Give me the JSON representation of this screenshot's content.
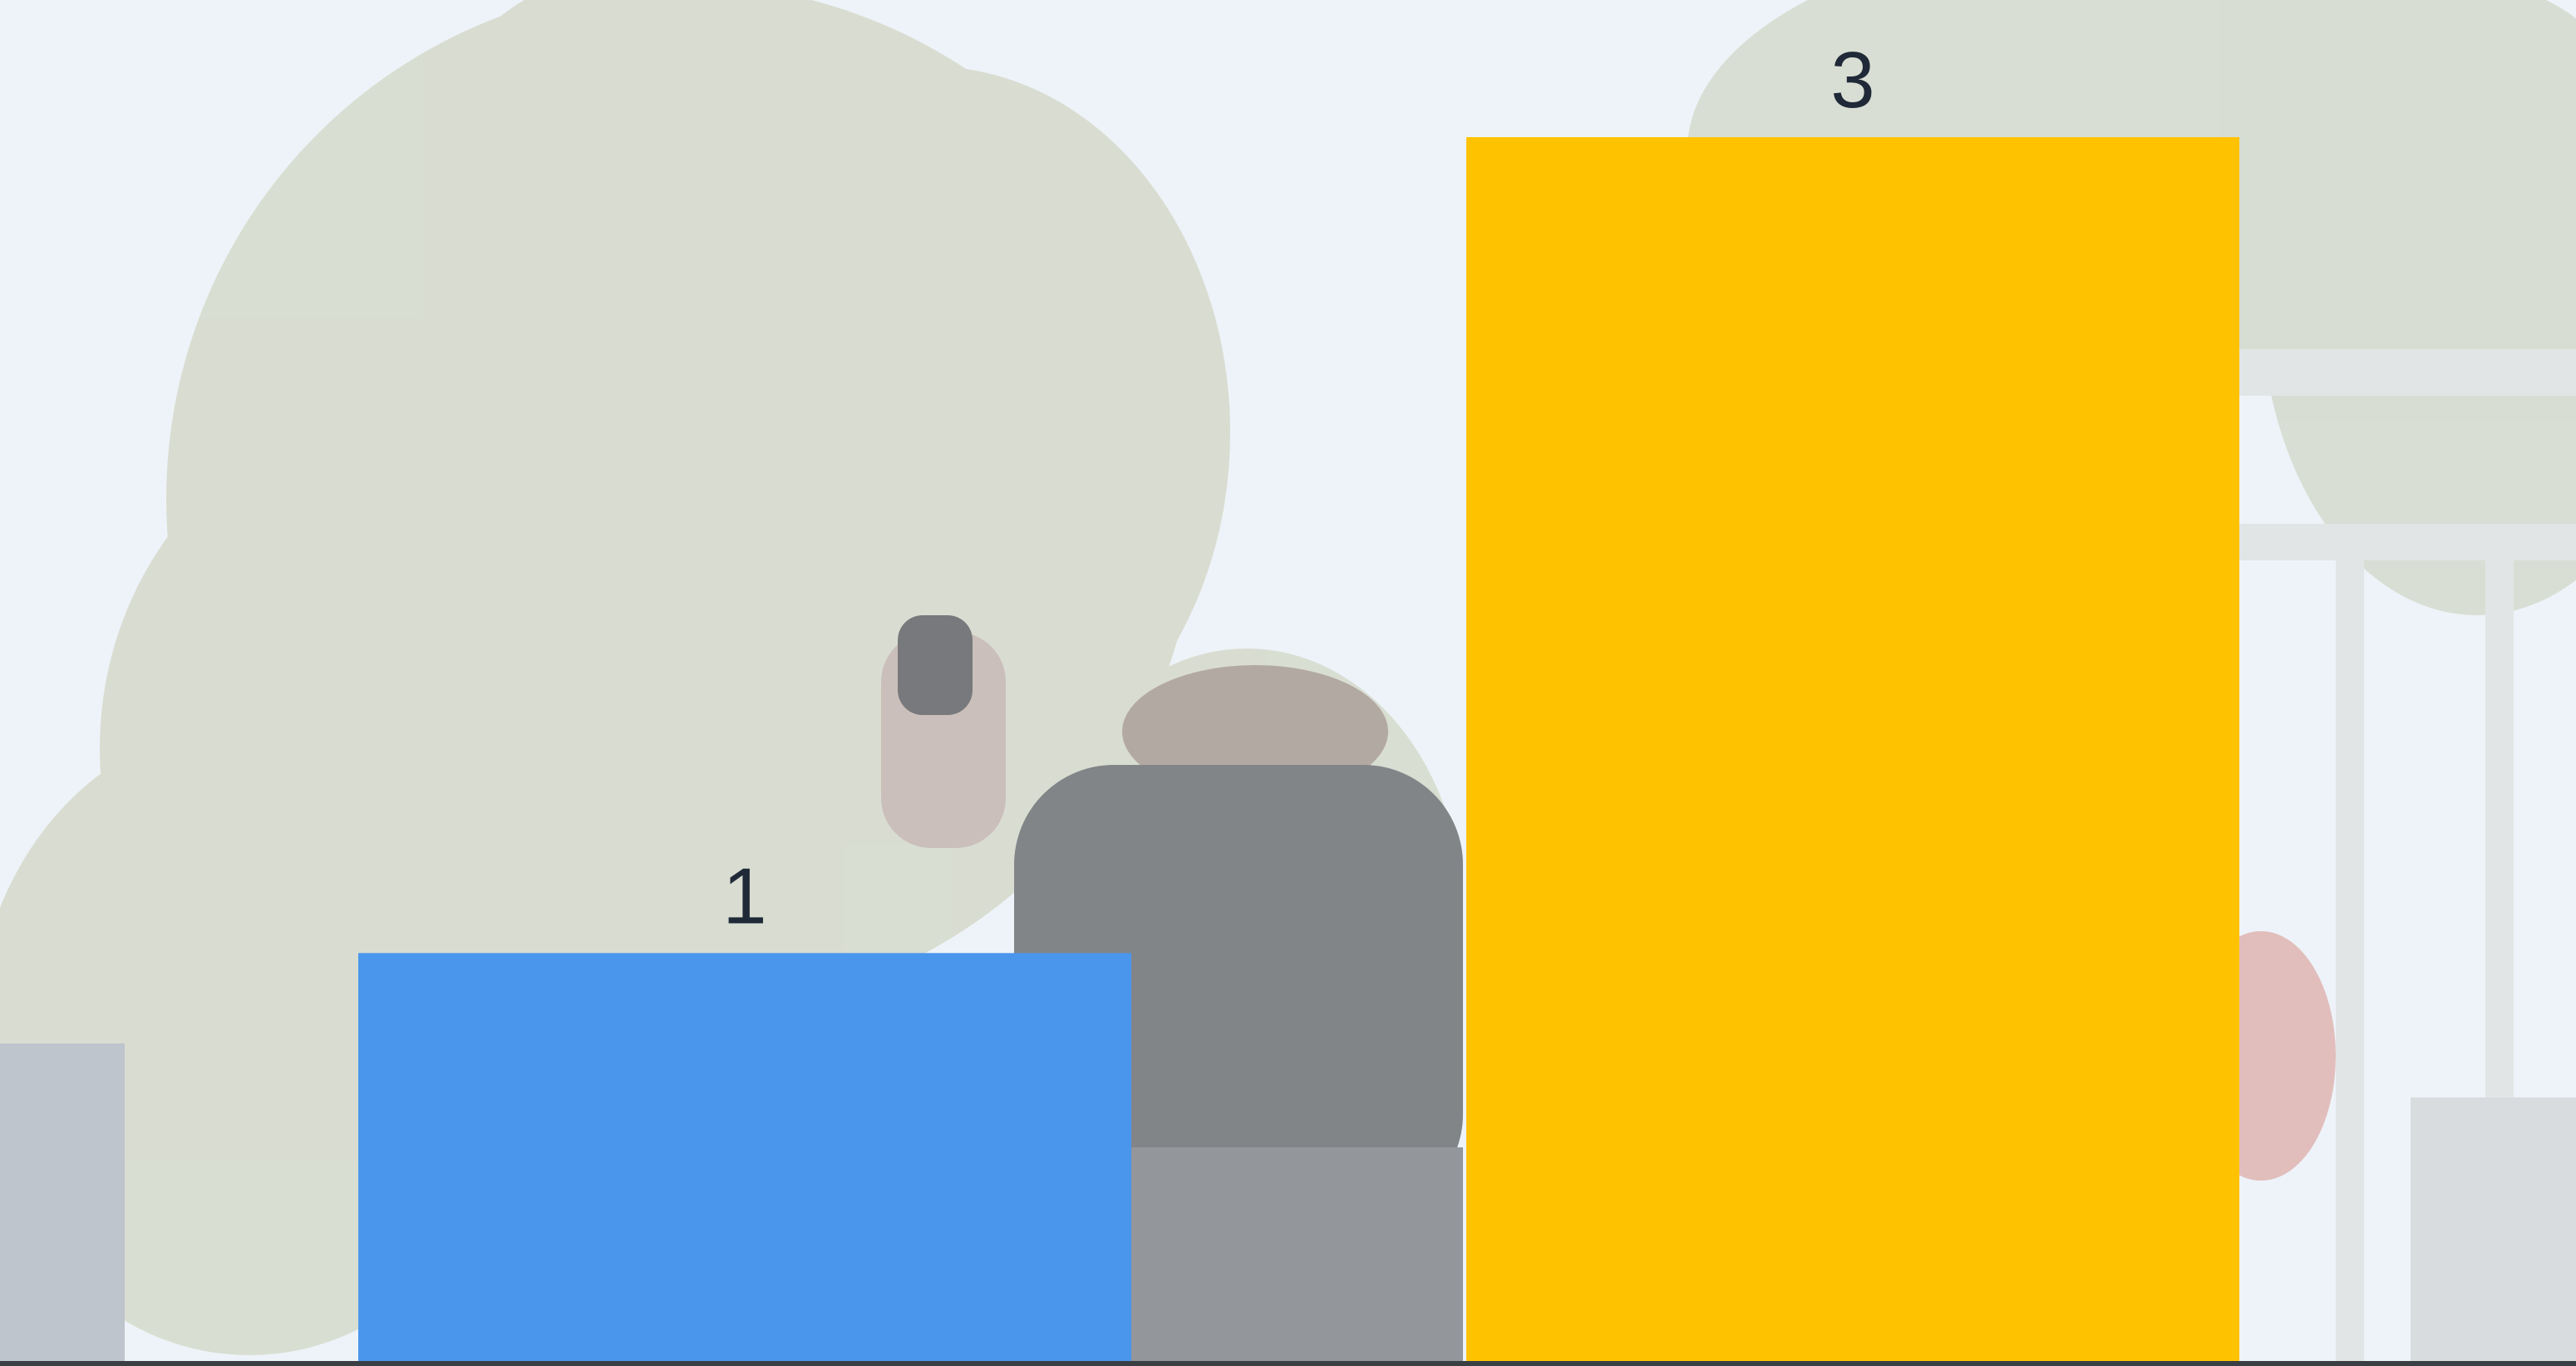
{
  "chart_data": {
    "type": "bar",
    "categories": [
      "",
      ""
    ],
    "values": [
      1,
      3
    ],
    "data_labels": [
      "1",
      "3"
    ],
    "colors": [
      "#4a96ec",
      "#ffc200"
    ],
    "title": "",
    "xlabel": "",
    "ylabel": "",
    "ylim": [
      0,
      3
    ],
    "grid": false,
    "legend": "none"
  },
  "background": {
    "description_icon": "skater-photo",
    "sky_color": "#e6eef7"
  }
}
